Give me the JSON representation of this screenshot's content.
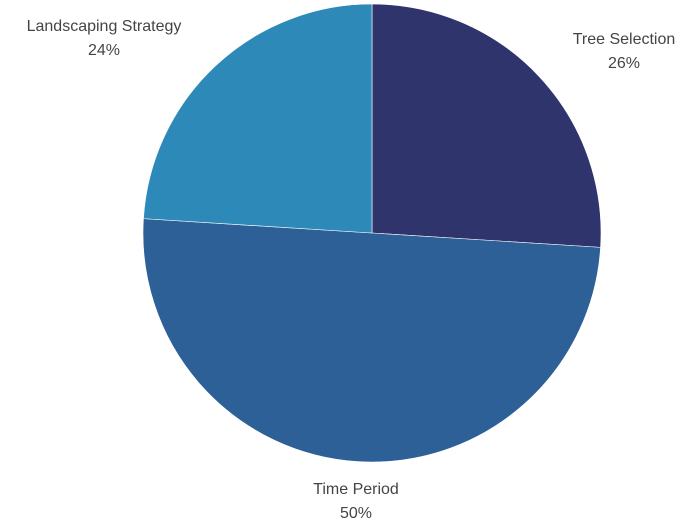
{
  "chart_data": {
    "type": "pie",
    "slices": [
      {
        "label": "Tree Selection",
        "value": 26,
        "value_label": "26%",
        "color": "#2f346c"
      },
      {
        "label": "Time Period",
        "value": 50,
        "value_label": "50%",
        "color": "#2e6098"
      },
      {
        "label": "Landscaping Strategy",
        "value": 24,
        "value_label": "24%",
        "color": "#2d8ab8"
      }
    ],
    "start_angle_deg": 0,
    "direction": "clockwise",
    "legend": "none"
  }
}
